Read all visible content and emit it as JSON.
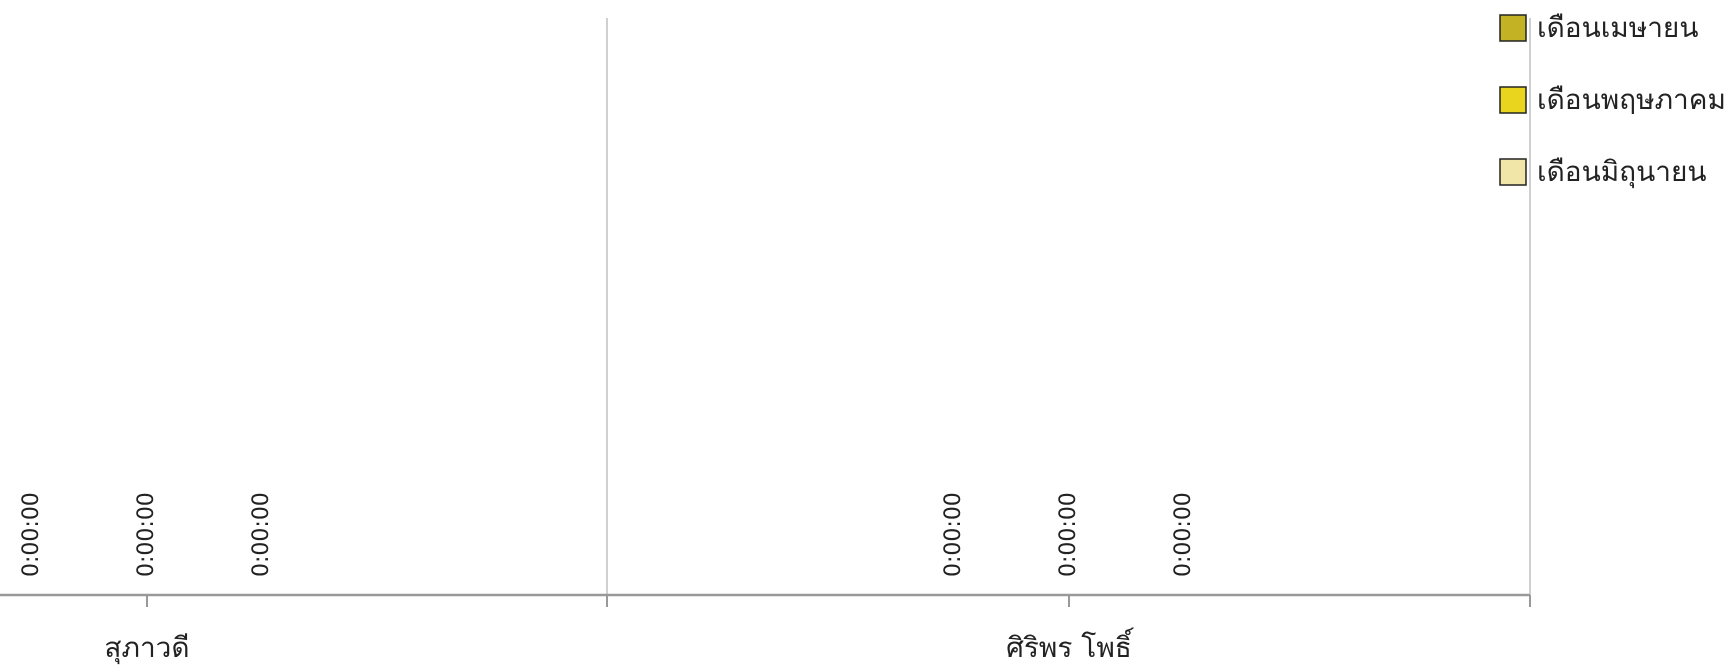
{
  "chart_data": {
    "type": "bar",
    "title": "",
    "xlabel": "",
    "ylabel": "",
    "categories": [
      "สุภาวดี",
      "ศิริพร โพธิ์"
    ],
    "series": [
      {
        "name": "เดือนเมษายน",
        "color": "#c2b224",
        "values": [
          0,
          0
        ],
        "labels": [
          "0:00:00",
          "0:00:00"
        ]
      },
      {
        "name": "เดือนพฤษภาคม",
        "color": "#ead51e",
        "values": [
          0,
          0
        ],
        "labels": [
          "0:00:00",
          "0:00:00"
        ]
      },
      {
        "name": "เดือนมิถุนายน",
        "color": "#f1e6a7",
        "values": [
          0,
          0
        ],
        "labels": [
          "0:00:00",
          "0:00:00"
        ]
      }
    ],
    "grid": true,
    "legend": "top-right"
  }
}
